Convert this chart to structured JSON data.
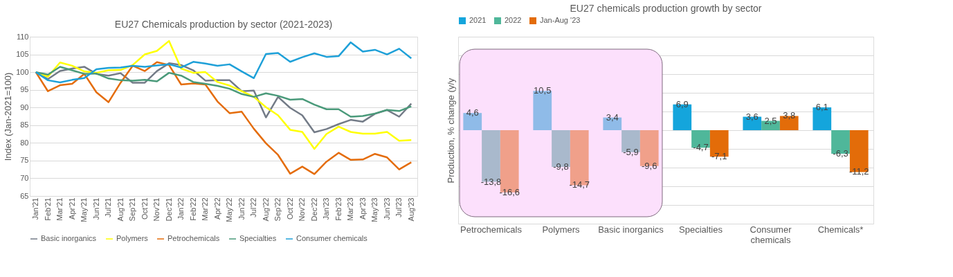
{
  "chart_data": [
    {
      "type": "line",
      "title": "EU27 Chemicals production by sector (2021-2023)",
      "ylabel": "Index (Jan-2021=100)",
      "categories": [
        "Jan'21",
        "Feb'21",
        "Mar'21",
        "Apr'21",
        "May'21",
        "Jun'21",
        "Jul'21",
        "Aug'21",
        "Sep'21",
        "Oct'21",
        "Nov'21",
        "Dec'21",
        "Jan'22",
        "Feb'22",
        "Mar'22",
        "Apr'22",
        "May'22",
        "Jun'22",
        "Jul'22",
        "Aug'22",
        "Sep'22",
        "Oct'22",
        "Nov'22",
        "Dec'22",
        "Jan'23",
        "Feb'23",
        "Mar'23",
        "Apr'23",
        "May'23",
        "Jun'23",
        "Jul'23",
        "Aug'23"
      ],
      "series": [
        {
          "name": "Basic inorganics",
          "color": "#737b87",
          "values": [
            100,
            98,
            100.3,
            101,
            101.5,
            99.5,
            99,
            99.7,
            97,
            97,
            100.3,
            102.5,
            102,
            100.5,
            97.6,
            97.7,
            97.7,
            94.6,
            94.8,
            87.2,
            93,
            89.9,
            87.8,
            83,
            83.9,
            85.3,
            86.5,
            86,
            88.2,
            89.3,
            87.4,
            91.1
          ]
        },
        {
          "name": "Polymers",
          "color": "#ffff00",
          "values": [
            100,
            98.7,
            102.7,
            101.8,
            100.2,
            99.8,
            100.5,
            100.6,
            102,
            105,
            106,
            108.8,
            101,
            99.8,
            100,
            97.2,
            96.2,
            94.6,
            93,
            90.1,
            87.8,
            83.7,
            83.1,
            78.3,
            82.5,
            84.6,
            83.1,
            82.6,
            82.6,
            83.1,
            80.6,
            80.8
          ]
        },
        {
          "name": "Petrochemicals",
          "color": "#e46c0a",
          "values": [
            100,
            94.6,
            96.3,
            96.7,
            99.5,
            94.3,
            91.5,
            97,
            101.8,
            100.3,
            102.8,
            102,
            96.5,
            96.8,
            96.5,
            91.7,
            88.4,
            88.8,
            84,
            79.9,
            76.6,
            71.3,
            73.3,
            71.2,
            74.7,
            77.2,
            75.2,
            75.3,
            76.9,
            75.9,
            72.5,
            74.5
          ]
        },
        {
          "name": "Specialties",
          "color": "#4a9a7a",
          "values": [
            100,
            99.3,
            101.5,
            100.5,
            99.5,
            99.6,
            98.2,
            97.7,
            97.6,
            97.8,
            97.4,
            99.8,
            99,
            97.2,
            96.7,
            96.1,
            95.3,
            93.8,
            93,
            94,
            93.3,
            92.2,
            92.4,
            90.8,
            89.5,
            89.5,
            87.4,
            87.6,
            88.3,
            89.3,
            89,
            90.3
          ]
        },
        {
          "name": "Consumer chemicals",
          "color": "#1ea0d8",
          "values": [
            100,
            97.7,
            97.1,
            97.8,
            98.3,
            100.8,
            101.2,
            101.3,
            101.8,
            101.5,
            101.9,
            102.2,
            101.3,
            102.9,
            102.4,
            101.8,
            102.2,
            100.2,
            98.3,
            105.1,
            105.4,
            102.9,
            104.2,
            105.3,
            104.3,
            104.5,
            108.4,
            105.8,
            106.3,
            105,
            106.6,
            103.9
          ]
        }
      ],
      "ylim": [
        65,
        110
      ],
      "yticks": [
        65,
        70,
        75,
        80,
        85,
        90,
        95,
        100,
        105,
        110
      ],
      "grid": "y",
      "legend": "bottom",
      "line_style": "solid",
      "marker": "none"
    },
    {
      "type": "bar",
      "title": "EU27 chemicals production growth by sector",
      "ylabel": "Production,  % change (y/y",
      "categories": [
        "Petrochemicals",
        "Polymers",
        "Basic inorganics",
        "Specialties",
        "Consumer chemicals",
        "Chemicals*"
      ],
      "series": [
        {
          "name": "2021",
          "color": "#14a5dc",
          "colors": [
            "#8fbbe8",
            "#8fbbe8",
            "#8fbbe8",
            "#14a5dc",
            "#14a5dc",
            "#14a5dc"
          ],
          "values": [
            4.6,
            10.5,
            3.4,
            6.9,
            3.6,
            6.1
          ],
          "value_labels": [
            "4,6",
            "10,5",
            "3,4",
            "6,9",
            "3,6",
            "6,1"
          ]
        },
        {
          "name": "2022",
          "color": "#4fb79a",
          "colors": [
            "#a9b9cc",
            "#a9b9cc",
            "#a9b9cc",
            "#4fb79a",
            "#4fb79a",
            "#4fb79a"
          ],
          "values": [
            -13.8,
            -9.8,
            -5.9,
            -4.7,
            2.5,
            -6.3
          ],
          "value_labels": [
            "-13,8",
            "-9,8",
            "-5,9",
            "-4,7",
            "2,5",
            "-6,3"
          ]
        },
        {
          "name": "Jan-Aug '23",
          "color": "#e36c09",
          "colors": [
            "#f0a08a",
            "#f0a08a",
            "#f0a08a",
            "#e36c09",
            "#e36c09",
            "#e36c09"
          ],
          "values": [
            -16.6,
            -14.7,
            -9.6,
            -7.1,
            3.8,
            -11.2
          ],
          "value_labels": [
            "-16,6",
            "-14,7",
            "-9,6",
            "-7,1",
            "3,8",
            "-11,2"
          ]
        }
      ],
      "bands": [
        {
          "axis": "x",
          "from": "Petrochemicals",
          "to": "Basic inorganics",
          "color": "#fce0fc"
        }
      ],
      "ylim": [
        -25,
        25
      ],
      "grid": "y",
      "legend": "top",
      "tick_labels": "x"
    }
  ]
}
